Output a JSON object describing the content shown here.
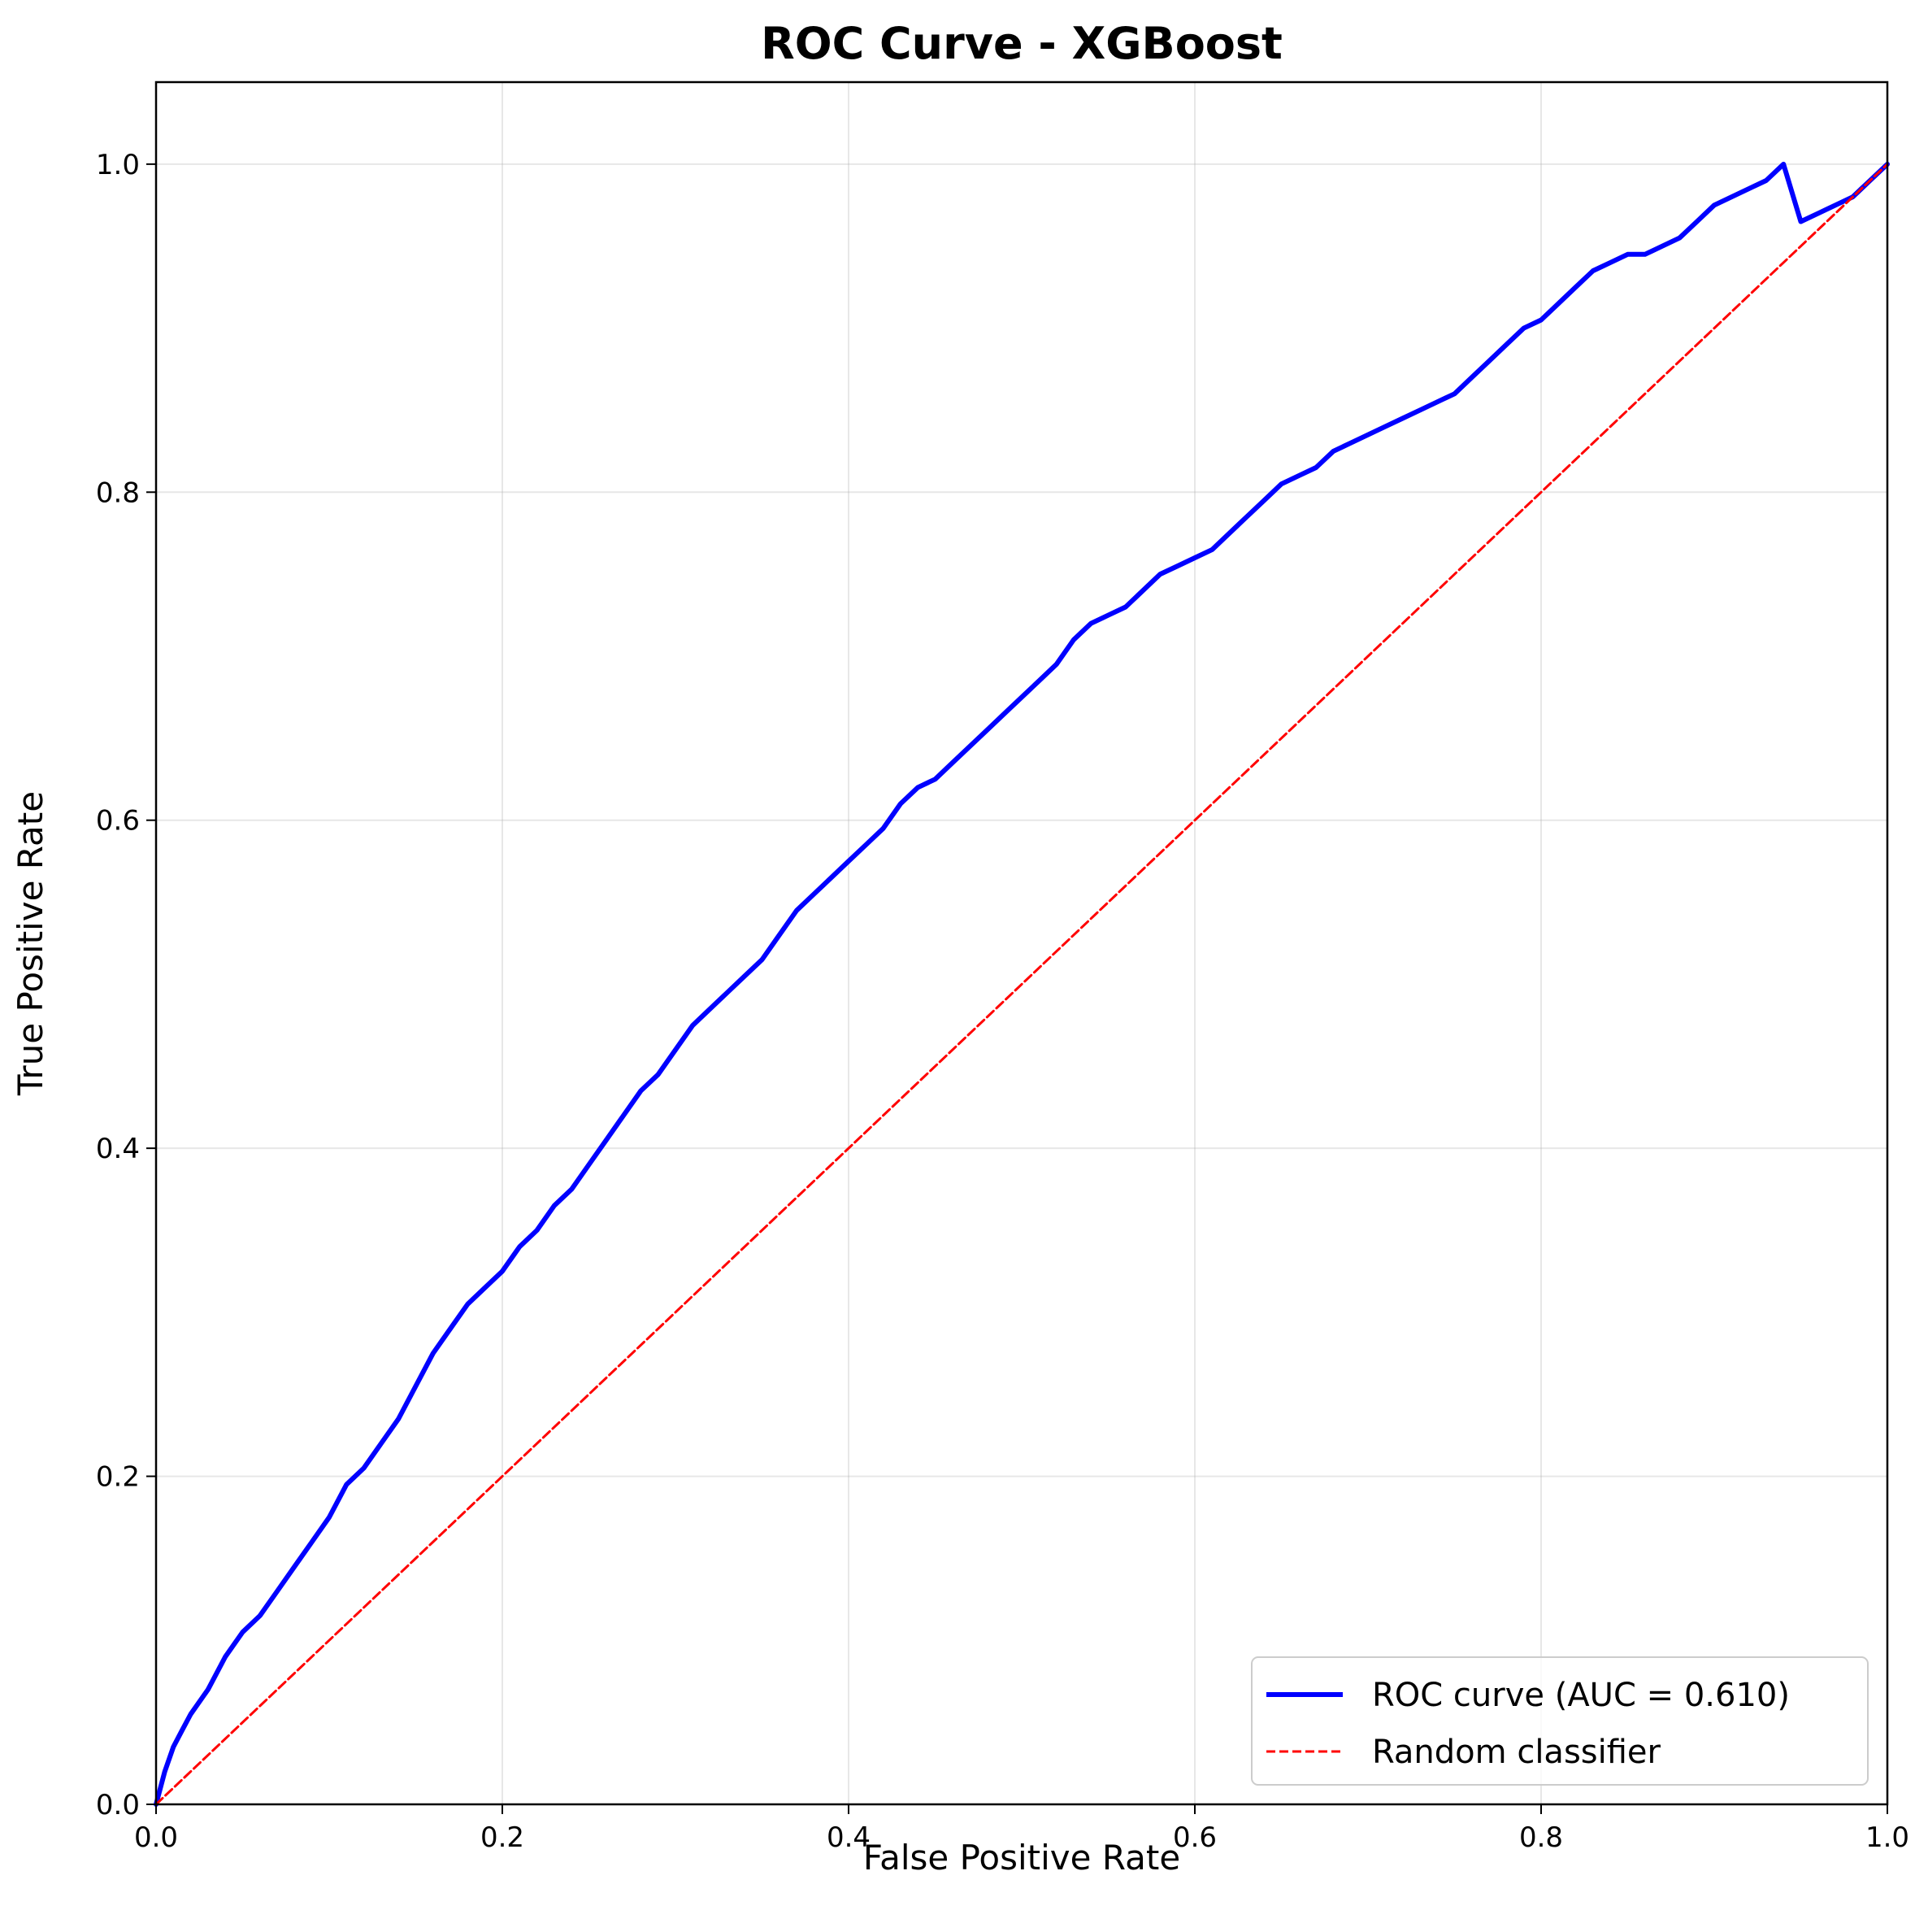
{
  "chart_data": {
    "type": "line",
    "title": "ROC Curve - XGBoost",
    "xlabel": "False Positive Rate",
    "ylabel": "True Positive Rate",
    "xlim": [
      0.0,
      1.0
    ],
    "ylim": [
      0.0,
      1.05
    ],
    "x_ticks": [
      0.0,
      0.2,
      0.4,
      0.6,
      0.8,
      1.0
    ],
    "y_ticks": [
      0.0,
      0.2,
      0.4,
      0.6,
      0.8,
      1.0
    ],
    "x_tick_labels": [
      "0.0",
      "0.2",
      "0.4",
      "0.6",
      "0.8",
      "1.0"
    ],
    "y_tick_labels": [
      "0.0",
      "0.2",
      "0.4",
      "0.6",
      "0.8",
      "1.0"
    ],
    "grid": true,
    "legend_position": "lower-right",
    "series": [
      {
        "name": "ROC curve (AUC = 0.610)",
        "color": "#0000ff",
        "style": "solid",
        "x": [
          0.0,
          0.005,
          0.01,
          0.015,
          0.02,
          0.03,
          0.04,
          0.05,
          0.06,
          0.07,
          0.08,
          0.09,
          0.1,
          0.11,
          0.12,
          0.13,
          0.14,
          0.15,
          0.16,
          0.17,
          0.18,
          0.19,
          0.2,
          0.21,
          0.22,
          0.23,
          0.24,
          0.25,
          0.26,
          0.27,
          0.28,
          0.29,
          0.3,
          0.31,
          0.32,
          0.33,
          0.34,
          0.35,
          0.36,
          0.37,
          0.38,
          0.39,
          0.4,
          0.41,
          0.42,
          0.43,
          0.44,
          0.45,
          0.46,
          0.47,
          0.48,
          0.49,
          0.5,
          0.51,
          0.52,
          0.53,
          0.54,
          0.55,
          0.56,
          0.57,
          0.58,
          0.59,
          0.6,
          0.61,
          0.62,
          0.63,
          0.64,
          0.65,
          0.66,
          0.67,
          0.68,
          0.69,
          0.7,
          0.71,
          0.72,
          0.73,
          0.74,
          0.75,
          0.76,
          0.77,
          0.78,
          0.79,
          0.8,
          0.81,
          0.82,
          0.83,
          0.84,
          0.85,
          0.86,
          0.87,
          0.88,
          0.89,
          0.9,
          0.91,
          0.92,
          0.93,
          0.94,
          0.95,
          0.96,
          0.97,
          0.98,
          0.99,
          1.0
        ],
        "y": [
          0.0,
          0.02,
          0.035,
          0.045,
          0.055,
          0.07,
          0.09,
          0.105,
          0.115,
          0.13,
          0.145,
          0.16,
          0.175,
          0.195,
          0.205,
          0.22,
          0.235,
          0.255,
          0.275,
          0.29,
          0.305,
          0.315,
          0.325,
          0.34,
          0.35,
          0.365,
          0.375,
          0.39,
          0.405,
          0.42,
          0.435,
          0.445,
          0.46,
          0.475,
          0.485,
          0.495,
          0.505,
          0.515,
          0.53,
          0.545,
          0.555,
          0.565,
          0.575,
          0.585,
          0.595,
          0.61,
          0.62,
          0.625,
          0.635,
          0.645,
          0.655,
          0.665,
          0.675,
          0.685,
          0.695,
          0.71,
          0.72,
          0.725,
          0.73,
          0.74,
          0.75,
          0.755,
          0.76,
          0.765,
          0.775,
          0.785,
          0.795,
          0.805,
          0.81,
          0.815,
          0.825,
          0.83,
          0.835,
          0.84,
          0.845,
          0.85,
          0.855,
          0.86,
          0.87,
          0.88,
          0.89,
          0.9,
          0.905,
          0.915,
          0.925,
          0.935,
          0.94,
          0.945,
          0.945,
          0.95,
          0.955,
          0.965,
          0.975,
          0.98,
          0.985,
          0.99,
          1.0,
          0.965,
          0.97,
          0.975,
          0.98,
          0.99,
          1.0
        ]
      },
      {
        "name": "Random classifier",
        "color": "#ff0000",
        "style": "dashed",
        "x": [
          0.0,
          1.0
        ],
        "y": [
          0.0,
          1.0
        ]
      }
    ]
  }
}
